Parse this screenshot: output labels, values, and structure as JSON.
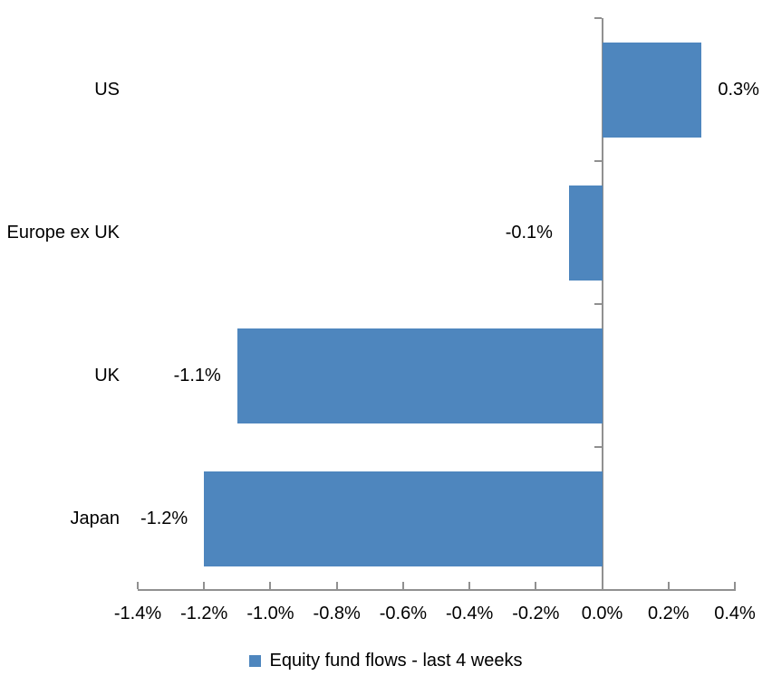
{
  "chart_data": {
    "type": "bar",
    "orientation": "horizontal",
    "title": "",
    "categories": [
      "US",
      "Europe ex UK",
      "UK",
      "Japan"
    ],
    "values": [
      0.3,
      -0.1,
      -1.1,
      -1.2
    ],
    "data_labels": [
      "0.3%",
      "-0.1%",
      "-1.1%",
      "-1.2%"
    ],
    "unit": "percent",
    "xlabel": "",
    "ylabel": "",
    "xlim": [
      -1.4,
      0.4
    ],
    "x_tick_step": 0.2,
    "x_tick_labels": [
      "-1.4%",
      "-1.2%",
      "-1.0%",
      "-0.8%",
      "-0.6%",
      "-0.4%",
      "-0.2%",
      "0.0%",
      "0.2%",
      "0.4%"
    ],
    "grid": false,
    "legend_position": "bottom",
    "legend": {
      "label": "Equity fund flows - last 4 weeks"
    },
    "colors": {
      "bar": "#4E86BE",
      "axis": "#909090",
      "text": "#000000",
      "background": "#FFFFFF"
    }
  }
}
